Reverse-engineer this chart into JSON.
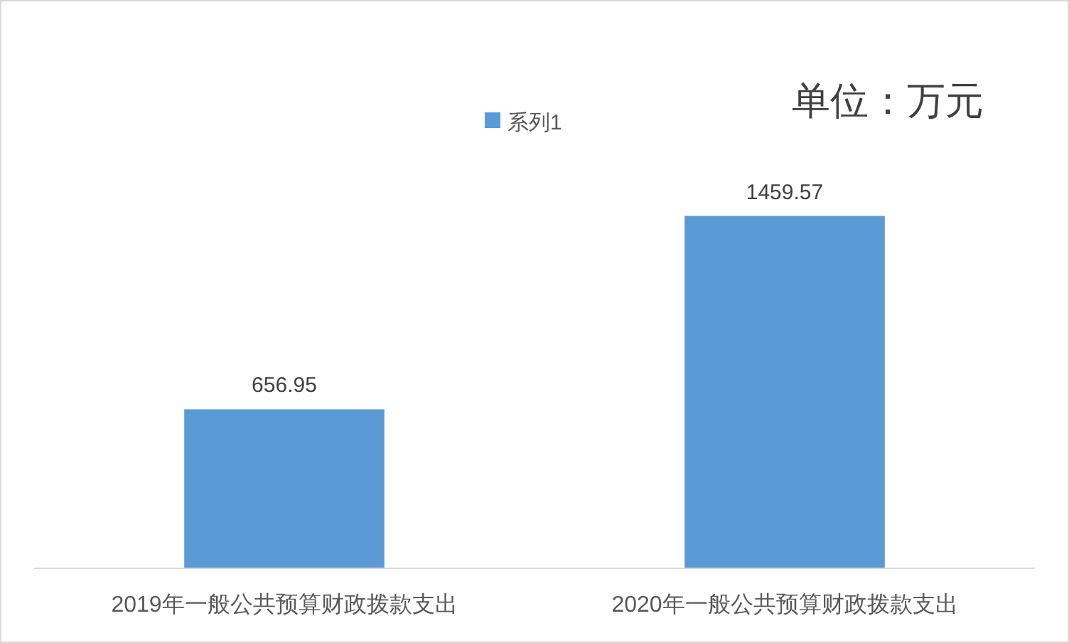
{
  "chart_data": {
    "type": "bar",
    "categories": [
      "2019年一般公共预算财政拨款支出",
      "2020年一般公共预算财政拨款支出"
    ],
    "series": [
      {
        "name": "系列1",
        "color": "#5b9bd5",
        "values": [
          656.95,
          1459.57
        ]
      }
    ],
    "data_labels": true,
    "legend": "top",
    "tick_labels": "x",
    "annotations": [
      "单位：万元"
    ]
  }
}
